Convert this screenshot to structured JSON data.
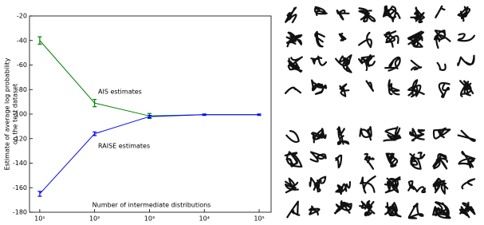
{
  "chart_data": {
    "type": "line",
    "y_label": [
      "Estimate of average log probability",
      "on the test dataset"
    ],
    "annotations": [
      "AIS estimates",
      "RAISE estimates",
      "Number of intermediate distributions"
    ],
    "x": [
      10,
      100,
      1000,
      10000,
      100000
    ],
    "xscale": "log",
    "xlim": [
      6.5,
      165000
    ],
    "xticks": [
      {
        "value": 10,
        "label": "10¹"
      },
      {
        "value": 100,
        "label": "10²"
      },
      {
        "value": 1000,
        "label": "10³"
      },
      {
        "value": 10000,
        "label": "10⁴"
      },
      {
        "value": 100000,
        "label": "10⁵"
      }
    ],
    "ylim": [
      -180,
      -20
    ],
    "yticks": [
      -20,
      -40,
      -60,
      -80,
      -100,
      -120,
      -140,
      -160,
      -180
    ],
    "series": [
      {
        "name": "AIS estimates",
        "color": "#008000",
        "values": [
          -40,
          -91,
          -101.5,
          -100.5,
          -100.5
        ],
        "errors": [
          3,
          3,
          2,
          0.5,
          0.5
        ]
      },
      {
        "name": "RAISE estimates",
        "color": "#0000ff",
        "values": [
          -165,
          -116,
          -102,
          -100.5,
          -100.5
        ],
        "errors": [
          2,
          1.5,
          1,
          0.5,
          0.5
        ]
      }
    ]
  }
}
